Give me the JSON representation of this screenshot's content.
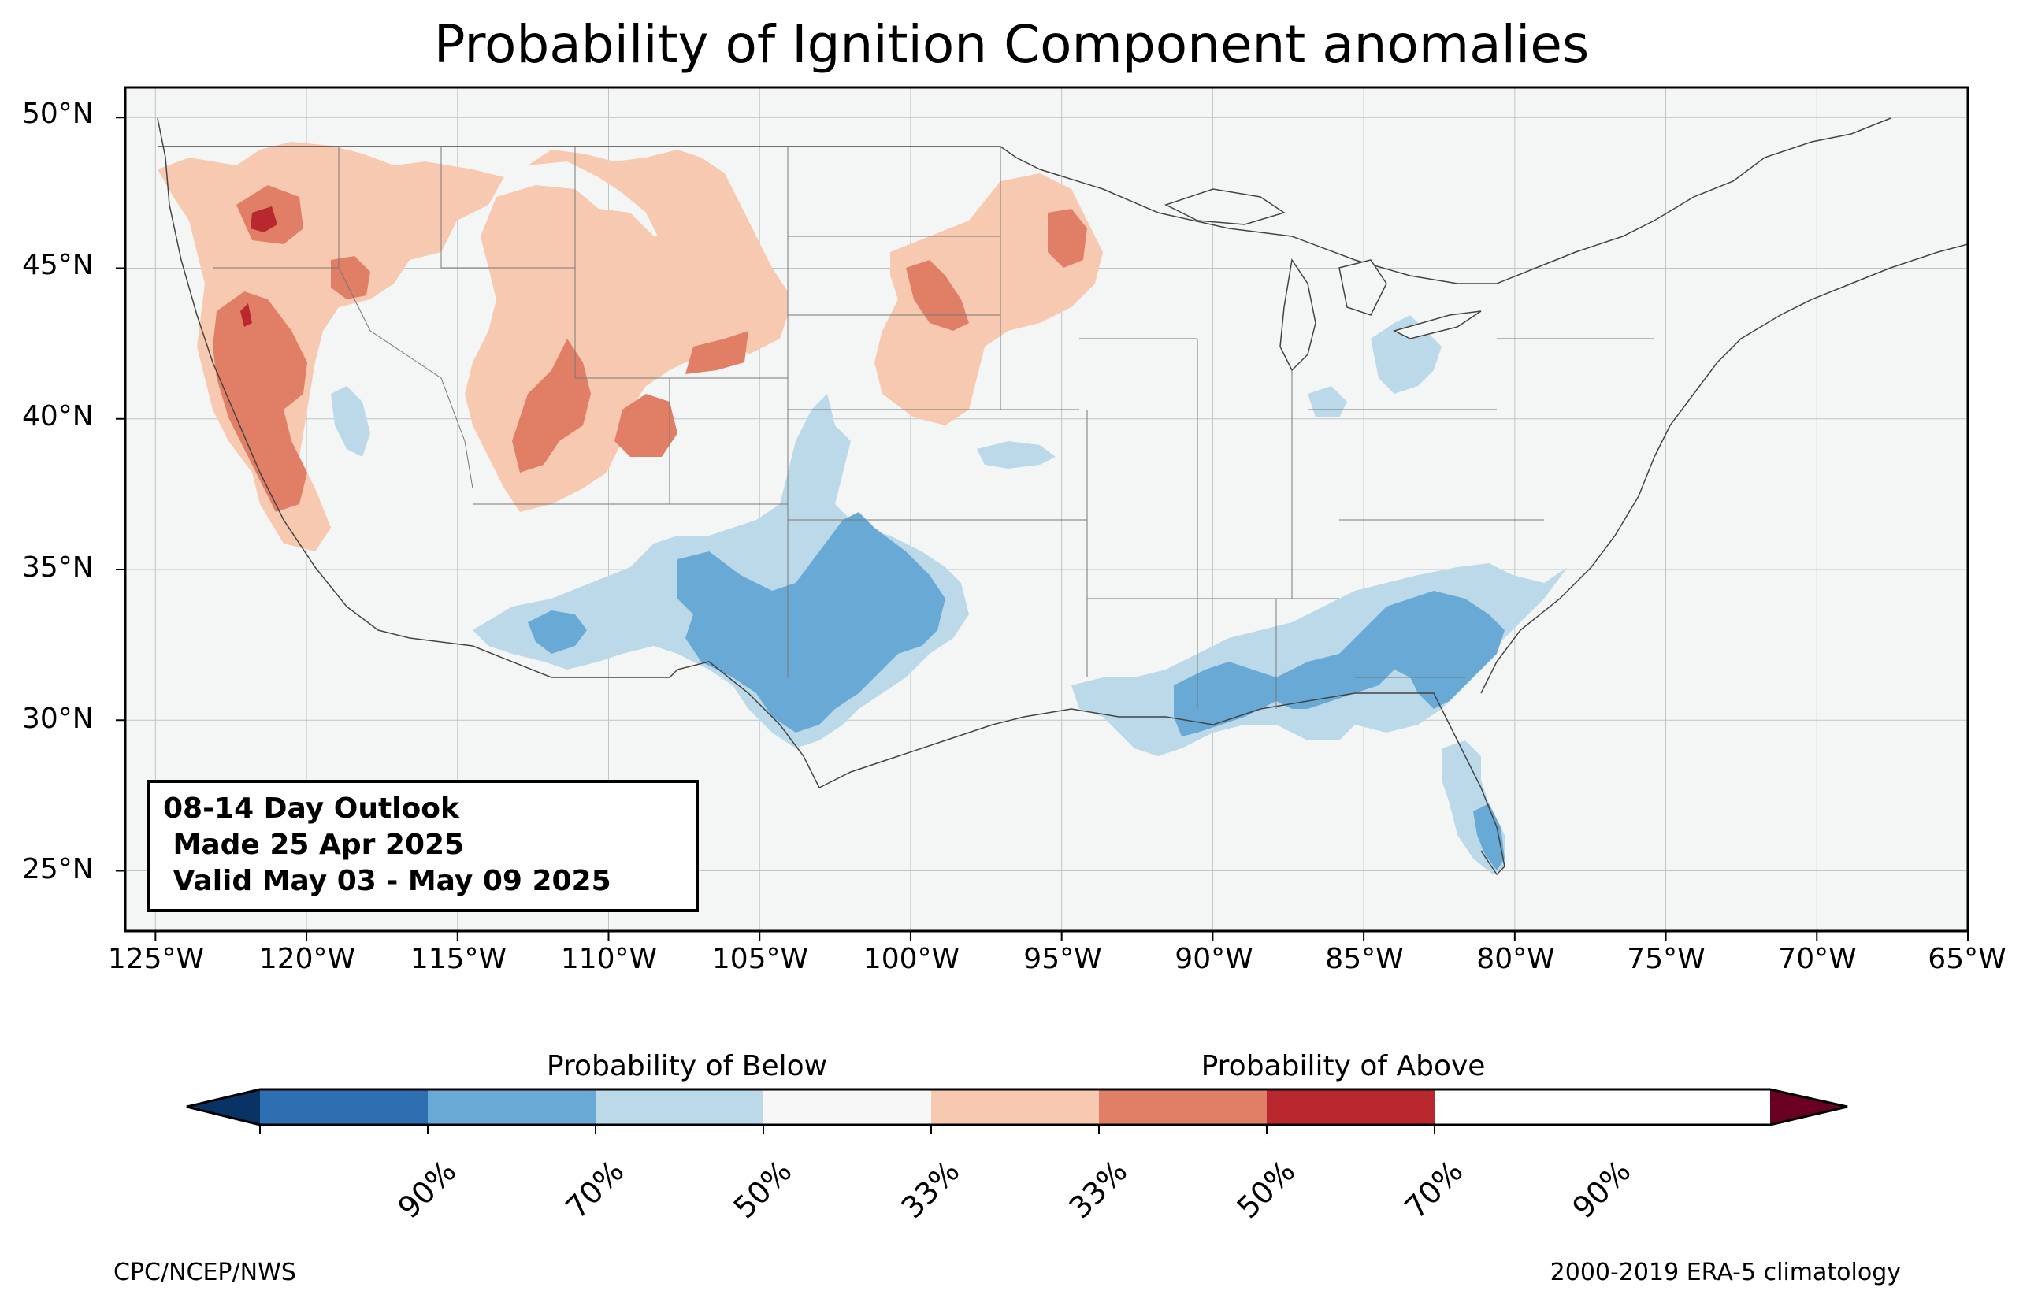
{
  "title": "Probability of Ignition Component anomalies",
  "map": {
    "lat_labels": [
      "50°N",
      "45°N",
      "40°N",
      "35°N",
      "30°N",
      "25°N"
    ],
    "lon_labels": [
      "125°W",
      "120°W",
      "115°W",
      "110°W",
      "105°W",
      "100°W",
      "95°W",
      "90°W",
      "85°W",
      "80°W",
      "75°W",
      "70°W",
      "65°W"
    ],
    "extent": {
      "lon_min": -126,
      "lon_max": -65,
      "lat_min": 23,
      "lat_max": 51
    },
    "background_color": "#f4f6f6",
    "grid": true
  },
  "info": {
    "line1": "08-14 Day Outlook",
    "line2": " Made 25 Apr 2025",
    "line3": " Valid May 03 - May 09 2025"
  },
  "colorbar": {
    "below_label": "Probability of Below",
    "above_label": "Probability of Above",
    "ticks": [
      "90%",
      "70%",
      "50%",
      "33%",
      "33%",
      "50%",
      "70%",
      "90%"
    ],
    "colors": [
      "#0a3365",
      "#2d6fb0",
      "#68aad5",
      "#bcd9ea",
      "#f7f7f7",
      "#f8c9b1",
      "#e17f66",
      "#b9282f",
      "#6a0021"
    ]
  },
  "credits": {
    "left": "CPC/NCEP/NWS",
    "right": "2000-2019 ERA-5 climatology"
  }
}
